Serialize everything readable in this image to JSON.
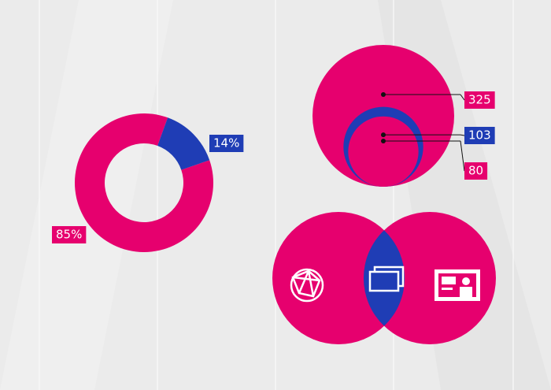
{
  "chart_data": [
    {
      "type": "donut",
      "values": [
        85,
        14
      ],
      "value_labels": [
        "85%",
        "14%"
      ],
      "colors": [
        "#e6006e",
        "#1f3db5"
      ]
    },
    {
      "type": "bubble",
      "values": [
        325,
        103,
        80
      ],
      "colors": [
        "#e6006e",
        "#1f3db5",
        "#e6006e"
      ]
    }
  ]
}
